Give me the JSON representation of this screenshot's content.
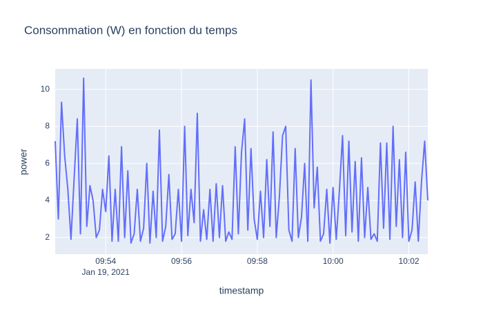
{
  "chart_data": {
    "type": "line",
    "title": "Consommation (W) en fonction du temps",
    "x_label": "timestamp",
    "y_label": "power",
    "x_date_label": "Jan 19, 2021",
    "x": [
      "2021-01-19 09:52:40",
      "2021-01-19 09:52:45",
      "2021-01-19 09:52:50",
      "2021-01-19 09:52:55",
      "2021-01-19 09:53:00",
      "2021-01-19 09:53:05",
      "2021-01-19 09:53:10",
      "2021-01-19 09:53:15",
      "2021-01-19 09:53:20",
      "2021-01-19 09:53:25",
      "2021-01-19 09:53:30",
      "2021-01-19 09:53:35",
      "2021-01-19 09:53:40",
      "2021-01-19 09:53:45",
      "2021-01-19 09:53:50",
      "2021-01-19 09:53:55",
      "2021-01-19 09:54:00",
      "2021-01-19 09:54:05",
      "2021-01-19 09:54:10",
      "2021-01-19 09:54:15",
      "2021-01-19 09:54:20",
      "2021-01-19 09:54:25",
      "2021-01-19 09:54:30",
      "2021-01-19 09:54:35",
      "2021-01-19 09:54:40",
      "2021-01-19 09:54:45",
      "2021-01-19 09:54:50",
      "2021-01-19 09:54:55",
      "2021-01-19 09:55:00",
      "2021-01-19 09:55:05",
      "2021-01-19 09:55:10",
      "2021-01-19 09:55:15",
      "2021-01-19 09:55:20",
      "2021-01-19 09:55:25",
      "2021-01-19 09:55:30",
      "2021-01-19 09:55:35",
      "2021-01-19 09:55:40",
      "2021-01-19 09:55:45",
      "2021-01-19 09:55:50",
      "2021-01-19 09:55:55",
      "2021-01-19 09:56:00",
      "2021-01-19 09:56:05",
      "2021-01-19 09:56:10",
      "2021-01-19 09:56:15",
      "2021-01-19 09:56:20",
      "2021-01-19 09:56:25",
      "2021-01-19 09:56:30",
      "2021-01-19 09:56:35",
      "2021-01-19 09:56:40",
      "2021-01-19 09:56:45",
      "2021-01-19 09:56:50",
      "2021-01-19 09:56:55",
      "2021-01-19 09:57:00",
      "2021-01-19 09:57:05",
      "2021-01-19 09:57:10",
      "2021-01-19 09:57:15",
      "2021-01-19 09:57:20",
      "2021-01-19 09:57:25",
      "2021-01-19 09:57:30",
      "2021-01-19 09:57:35",
      "2021-01-19 09:57:40",
      "2021-01-19 09:57:45",
      "2021-01-19 09:57:50",
      "2021-01-19 09:57:55",
      "2021-01-19 09:58:00",
      "2021-01-19 09:58:05",
      "2021-01-19 09:58:10",
      "2021-01-19 09:58:15",
      "2021-01-19 09:58:20",
      "2021-01-19 09:58:25",
      "2021-01-19 09:58:30",
      "2021-01-19 09:58:35",
      "2021-01-19 09:58:40",
      "2021-01-19 09:58:45",
      "2021-01-19 09:58:50",
      "2021-01-19 09:58:55",
      "2021-01-19 09:59:00",
      "2021-01-19 09:59:05",
      "2021-01-19 09:59:10",
      "2021-01-19 09:59:15",
      "2021-01-19 09:59:20",
      "2021-01-19 09:59:25",
      "2021-01-19 09:59:30",
      "2021-01-19 09:59:35",
      "2021-01-19 09:59:40",
      "2021-01-19 09:59:45",
      "2021-01-19 09:59:50",
      "2021-01-19 09:59:55",
      "2021-01-19 10:00:00",
      "2021-01-19 10:00:05",
      "2021-01-19 10:00:10",
      "2021-01-19 10:00:15",
      "2021-01-19 10:00:20",
      "2021-01-19 10:00:25",
      "2021-01-19 10:00:30",
      "2021-01-19 10:00:35",
      "2021-01-19 10:00:40",
      "2021-01-19 10:00:45",
      "2021-01-19 10:00:50",
      "2021-01-19 10:00:55",
      "2021-01-19 10:01:00",
      "2021-01-19 10:01:05",
      "2021-01-19 10:01:10",
      "2021-01-19 10:01:15",
      "2021-01-19 10:01:20",
      "2021-01-19 10:01:25",
      "2021-01-19 10:01:30",
      "2021-01-19 10:01:35",
      "2021-01-19 10:01:40",
      "2021-01-19 10:01:45",
      "2021-01-19 10:01:50",
      "2021-01-19 10:01:55",
      "2021-01-19 10:02:00",
      "2021-01-19 10:02:05",
      "2021-01-19 10:02:10",
      "2021-01-19 10:02:15",
      "2021-01-19 10:02:20",
      "2021-01-19 10:02:25",
      "2021-01-19 10:02:30"
    ],
    "series": [
      {
        "name": "power",
        "color": "#636efa",
        "values": [
          7.2,
          3.0,
          9.3,
          6.4,
          4.6,
          1.9,
          5.2,
          8.4,
          2.2,
          10.6,
          2.6,
          4.8,
          4.0,
          2.0,
          2.4,
          4.6,
          3.4,
          6.4,
          1.8,
          4.6,
          1.8,
          6.9,
          2.0,
          5.6,
          1.7,
          2.2,
          4.6,
          1.8,
          2.5,
          6.0,
          1.7,
          4.5,
          2.0,
          7.8,
          1.8,
          2.6,
          5.4,
          1.9,
          2.2,
          4.6,
          1.8,
          8.0,
          2.1,
          4.6,
          2.8,
          8.7,
          1.8,
          3.5,
          1.9,
          4.6,
          1.8,
          4.9,
          2.0,
          4.8,
          1.8,
          2.3,
          1.9,
          6.9,
          2.2,
          6.6,
          8.4,
          2.4,
          6.8,
          3.0,
          1.9,
          4.5,
          2.0,
          6.2,
          2.6,
          7.7,
          2.0,
          4.2,
          7.5,
          8.0,
          2.4,
          1.8,
          6.8,
          2.0,
          3.1,
          6.0,
          1.8,
          10.5,
          3.6,
          5.8,
          1.8,
          2.2,
          4.6,
          1.7,
          4.7,
          1.9,
          4.5,
          7.5,
          2.1,
          7.2,
          2.3,
          6.1,
          1.8,
          6.3,
          2.0,
          4.7,
          1.9,
          2.2,
          1.8,
          7.1,
          2.5,
          7.1,
          1.9,
          8.0,
          2.6,
          6.2,
          2.0,
          6.6,
          1.8,
          2.4,
          5.0,
          1.8,
          5.0,
          7.2,
          4.0
        ]
      }
    ],
    "xlim": [
      "2021-01-19 09:52:40",
      "2021-01-19 10:02:30"
    ],
    "xticks": [
      {
        "value": "2021-01-19 09:54:00",
        "label": "09:54"
      },
      {
        "value": "2021-01-19 09:56:00",
        "label": "09:56"
      },
      {
        "value": "2021-01-19 09:58:00",
        "label": "09:58"
      },
      {
        "value": "2021-01-19 10:00:00",
        "label": "10:00"
      },
      {
        "value": "2021-01-19 10:02:00",
        "label": "10:02"
      }
    ],
    "ylim": [
      1.1,
      11.1
    ],
    "yticks": [
      2,
      4,
      6,
      8,
      10
    ],
    "grid": true
  }
}
